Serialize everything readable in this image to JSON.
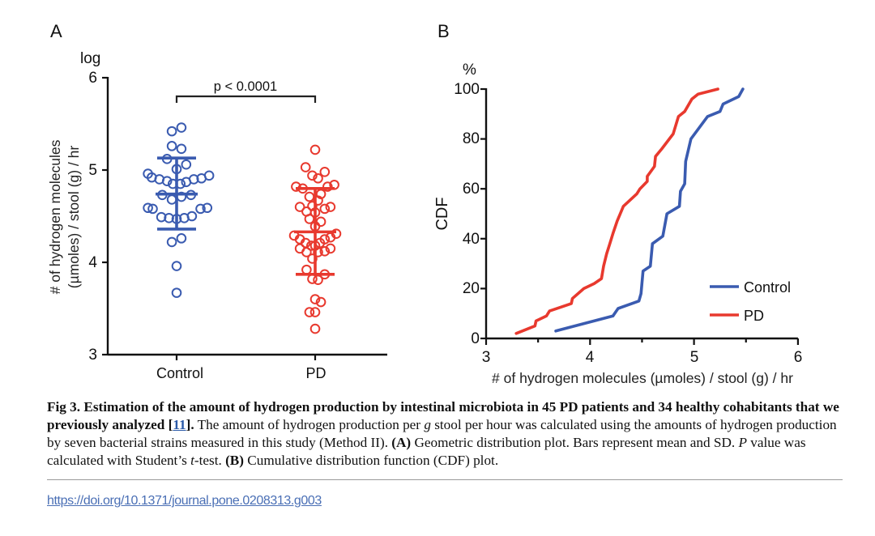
{
  "chart_data": [
    {
      "panel": "A",
      "type": "scatter",
      "subtype": "dot-plot with mean and SD",
      "title": "",
      "xlabel": "",
      "ylabel": "# of hydrogen molecules (µmoles) / stool (g) / hr",
      "ylabel_lines": [
        "# of hydrogen molecules",
        "(µmoles) / stool (g) / hr"
      ],
      "yunit_label": "log",
      "ylim": [
        3,
        6
      ],
      "yticks": [
        3,
        4,
        5,
        6
      ],
      "categories": [
        "Control",
        "PD"
      ],
      "grid": false,
      "annotation": "p < 0.0001",
      "series": [
        {
          "name": "Control",
          "color": "#3a5bb0",
          "mean": 4.74,
          "sd_upper": 5.13,
          "sd_lower": 4.36,
          "values": [
            5.46,
            5.42,
            5.26,
            5.23,
            5.12,
            5.06,
            5.01,
            4.96,
            4.92,
            4.9,
            4.88,
            4.85,
            4.85,
            4.87,
            4.9,
            4.91,
            4.94,
            4.73,
            4.68,
            4.71,
            4.73,
            4.59,
            4.58,
            4.49,
            4.48,
            4.47,
            4.48,
            4.5,
            4.58,
            4.59,
            4.22,
            4.26,
            3.96,
            3.67
          ],
          "offsets": [
            0.5,
            -0.5,
            -0.5,
            0.5,
            -1,
            1,
            0,
            -3,
            -2.6,
            -1.8,
            -1,
            -0.4,
            0.4,
            1,
            1.8,
            2.6,
            3.4,
            -1.5,
            -0.5,
            0.5,
            1.5,
            -3,
            -2.5,
            -1.6,
            -0.8,
            0,
            0.8,
            1.6,
            2.5,
            3.2,
            -0.5,
            0.5,
            0,
            0
          ]
        },
        {
          "name": "PD",
          "color": "#e8392e",
          "mean": 4.33,
          "sd_upper": 4.8,
          "sd_lower": 3.87,
          "values": [
            5.22,
            5.03,
            4.98,
            4.94,
            4.91,
            4.82,
            4.8,
            4.82,
            4.84,
            4.71,
            4.74,
            4.67,
            4.6,
            4.61,
            4.58,
            4.6,
            4.55,
            4.54,
            4.47,
            4.44,
            4.39,
            4.29,
            4.25,
            4.31,
            4.27,
            4.25,
            4.21,
            4.18,
            4.18,
            4.21,
            4.15,
            4.11,
            4.11,
            4.12,
            4.15,
            4.04,
            3.92,
            3.87,
            3.82,
            3.81,
            3.6,
            3.57,
            3.46,
            3.46,
            3.28
          ],
          "offsets": [
            0,
            -1,
            1,
            -0.3,
            0.3,
            -2,
            -1.3,
            1.3,
            2,
            -0.6,
            0.6,
            0.3,
            -1.6,
            -0.3,
            1,
            1.6,
            -0.9,
            0,
            -0.6,
            0.6,
            0,
            -2.2,
            -1.6,
            2.2,
            1.6,
            1,
            -1,
            -0.4,
            0,
            0.5,
            -1.6,
            -0.9,
            0.3,
            1,
            1.6,
            -0.3,
            -0.9,
            1,
            -0.3,
            0.3,
            0,
            0.6,
            -0.6,
            0,
            0
          ]
        }
      ]
    },
    {
      "panel": "B",
      "type": "line",
      "subtype": "cumulative distribution function",
      "title": "",
      "xlabel": "# of hydrogen molecules (µmoles) / stool (g) / hr",
      "ylabel": "CDF",
      "yunit_label": "%",
      "xlim": [
        3,
        6
      ],
      "ylim": [
        0,
        100
      ],
      "xticks": [
        3,
        4,
        5,
        6
      ],
      "xminor_ticks": [
        3.5,
        4.5,
        5.5
      ],
      "yticks": [
        0,
        20,
        40,
        60,
        80,
        100
      ],
      "grid": false,
      "legend_position": "bottom-right",
      "series": [
        {
          "name": "Control",
          "color": "#3a5bb0",
          "x": [
            3.67,
            4.22,
            4.27,
            4.47,
            4.49,
            4.51,
            4.58,
            4.6,
            4.7,
            4.74,
            4.86,
            4.87,
            4.91,
            4.92,
            4.97,
            5.13,
            5.25,
            5.28,
            5.43,
            5.47
          ],
          "y": [
            3,
            9,
            12,
            15,
            18,
            27,
            29,
            38,
            41,
            50,
            53,
            59,
            62,
            71,
            80,
            89,
            91,
            94,
            97,
            100
          ]
        },
        {
          "name": "PD",
          "color": "#e8392e",
          "x": [
            3.29,
            3.47,
            3.48,
            3.58,
            3.61,
            3.82,
            3.83,
            3.94,
            4.04,
            4.11,
            4.13,
            4.16,
            4.19,
            4.22,
            4.26,
            4.32,
            4.45,
            4.48,
            4.55,
            4.55,
            4.62,
            4.63,
            4.69,
            4.8,
            4.85,
            4.91,
            4.98,
            5.04,
            5.23
          ],
          "y": [
            2,
            5,
            7,
            9,
            11,
            14,
            16,
            20,
            22,
            24,
            29,
            34,
            38,
            42,
            47,
            53,
            58,
            60,
            63,
            65,
            69,
            73,
            76,
            82,
            89,
            91,
            96,
            98,
            100
          ]
        }
      ]
    }
  ],
  "panel_labels": {
    "a": "A",
    "b": "B"
  },
  "axis_text": {
    "a_yticks": [
      "3",
      "4",
      "5",
      "6"
    ],
    "a_unit": "log",
    "a_ylabel_line1": "# of hydrogen molecules",
    "a_ylabel_line2": "(µmoles) / stool (g) / hr",
    "a_cat_control": "Control",
    "a_cat_pd": "PD",
    "a_pvalue": "p < 0.0001",
    "b_yticks": [
      "0",
      "20",
      "40",
      "60",
      "80",
      "100"
    ],
    "b_xticks": [
      "3",
      "4",
      "5",
      "6"
    ],
    "b_unit": "%",
    "b_ylabel": "CDF",
    "b_xlabel": "# of hydrogen molecules (µmoles) / stool (g) / hr",
    "legend_control": "Control",
    "legend_pd": "PD"
  },
  "caption": {
    "fig_label": "Fig 3.",
    "title_part1": " Estimation of the amount of hydrogen production by intestinal microbiota in 45 PD patients and 34 healthy cohabitants that we previously analyzed ",
    "ref_open": "[",
    "ref_link": "11",
    "ref_close": "].",
    "body1": " The amount of hydrogen production per ",
    "body1_italic": "g",
    "body2": " stool per hour was calculated using the amounts of hydrogen production by seven bacterial strains measured in this study (Method II). ",
    "a_label": "(A)",
    "a_text1": " Geometric distribution plot. Bars represent mean and SD. ",
    "a_italic_p": "P",
    "a_text2": " value was calculated with Student’s ",
    "a_italic_t": "t",
    "a_text3": "-test. ",
    "b_label": "(B)",
    "b_text": " Cumulative distribution function (CDF) plot."
  },
  "doi_link": "https://doi.org/10.1371/journal.pone.0208313.g003"
}
